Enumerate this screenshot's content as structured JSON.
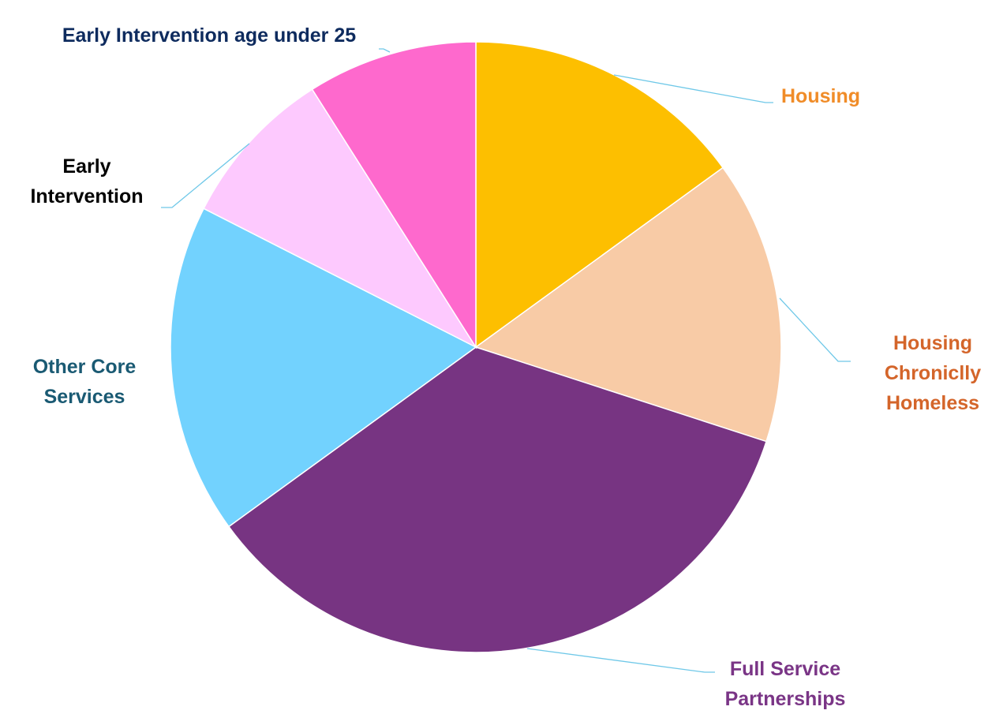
{
  "chart_data": {
    "type": "pie",
    "categories": [
      "Housing",
      "Housing Chroniclly Homeless",
      "Full Service Partnerships",
      "Other Core Services",
      "Early Intervention",
      "Early Intervention age under 25"
    ],
    "values": [
      15,
      15,
      35,
      17.5,
      8.5,
      9
    ],
    "colors": [
      "#fdbf00",
      "#f8cba6",
      "#773482",
      "#72d2fe",
      "#fdc9fe",
      "#fe69cd"
    ],
    "label_colors": [
      "#f08c28",
      "#d4652a",
      "#7a3586",
      "#1a5a73",
      "#000000",
      "#0e2b5e"
    ]
  }
}
